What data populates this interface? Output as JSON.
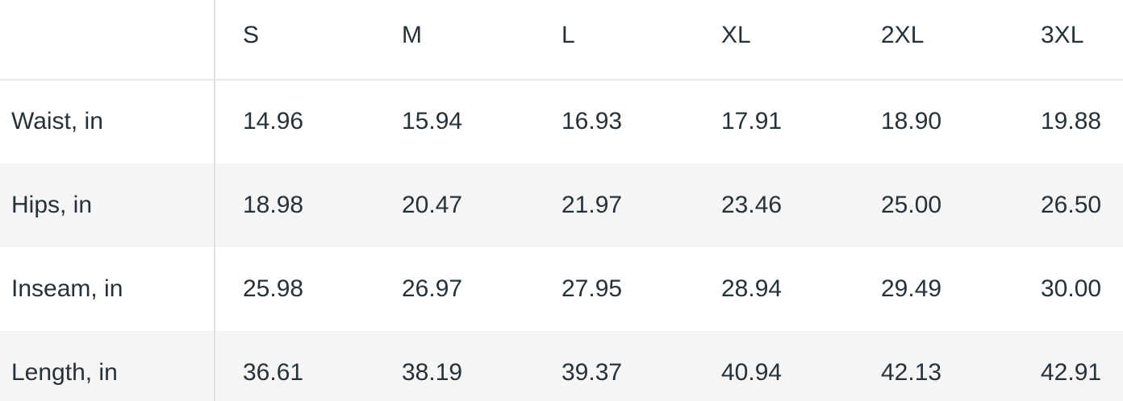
{
  "chart_data": {
    "type": "table",
    "corner_header": "",
    "column_headers": [
      "S",
      "M",
      "L",
      "XL",
      "2XL",
      "3XL"
    ],
    "rows": [
      {
        "label": "Waist, in",
        "values": [
          "14.96",
          "15.94",
          "16.93",
          "17.91",
          "18.90",
          "19.88"
        ]
      },
      {
        "label": "Hips, in",
        "values": [
          "18.98",
          "20.47",
          "21.97",
          "23.46",
          "25.00",
          "26.50"
        ]
      },
      {
        "label": "Inseam, in",
        "values": [
          "25.98",
          "26.97",
          "27.95",
          "28.94",
          "29.49",
          "30.00"
        ]
      },
      {
        "label": "Length, in",
        "values": [
          "36.61",
          "38.19",
          "39.37",
          "40.94",
          "42.13",
          "42.91"
        ]
      }
    ],
    "units": "in"
  },
  "colors": {
    "text": "#263238",
    "row_stripe": "#f5f5f6",
    "column_divider": "#dee0e1",
    "header_border": "#e8eaea",
    "background": "#ffffff"
  }
}
